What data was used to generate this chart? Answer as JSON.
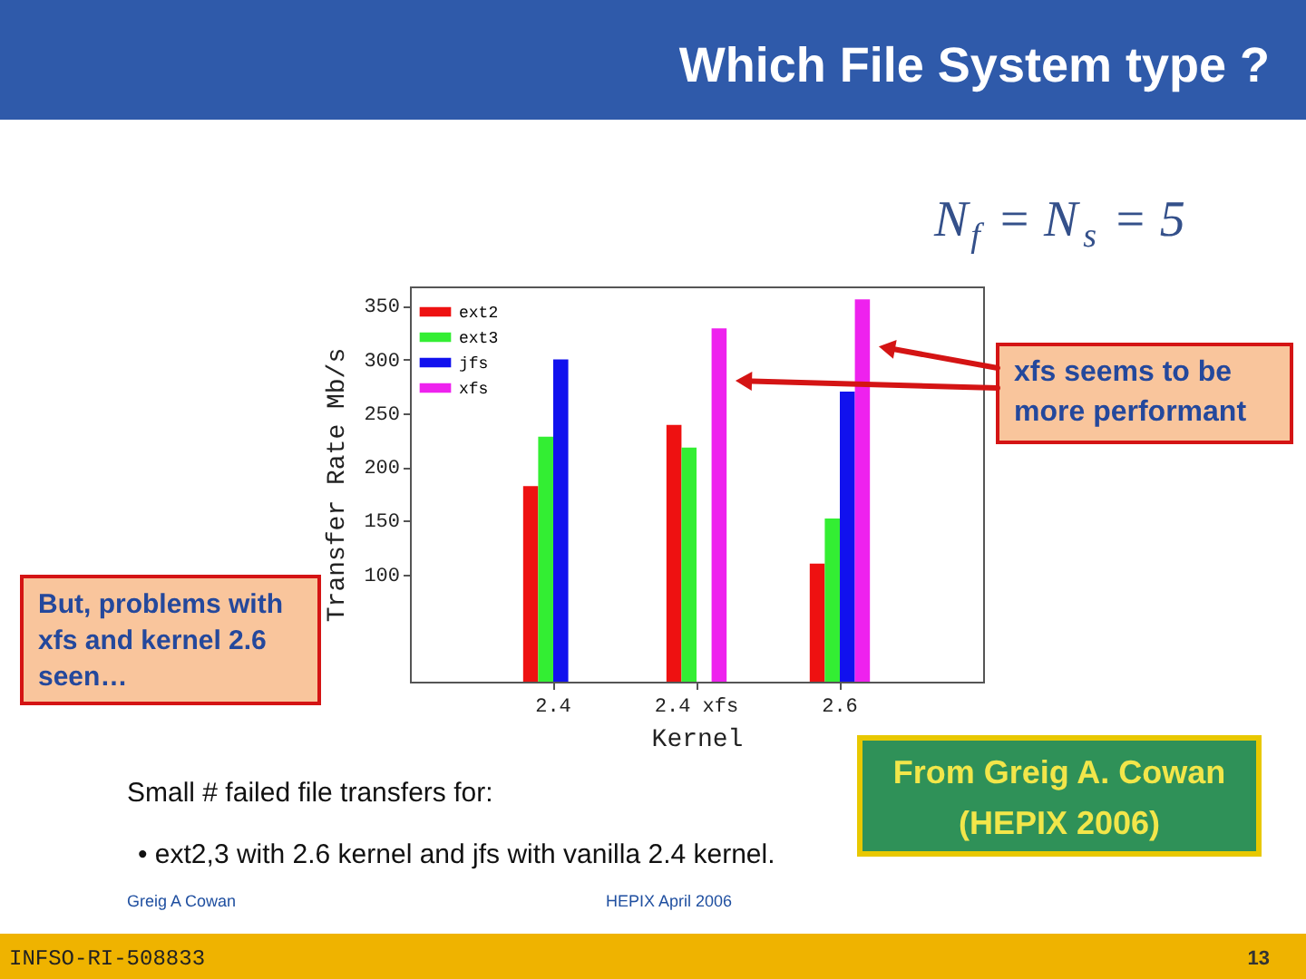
{
  "chart_data": {
    "type": "bar",
    "title": "Which File System type ?",
    "xlabel": "Kernel",
    "ylabel": "Transfer Rate Mb/s",
    "categories": [
      "2.4",
      "2.4 xfs",
      "2.6"
    ],
    "series": [
      {
        "name": "ext2",
        "color": "#ee1111",
        "values": [
          182,
          239,
          110
        ]
      },
      {
        "name": "ext3",
        "color": "#33ee33",
        "values": [
          228,
          218,
          152
        ]
      },
      {
        "name": "jfs",
        "color": "#1111ee",
        "values": [
          300,
          null,
          270
        ]
      },
      {
        "name": "xfs",
        "color": "#ee22ee",
        "values": [
          null,
          329,
          356
        ]
      }
    ],
    "ylim": [
      0,
      368
    ],
    "yticks": [
      100,
      150,
      200,
      250,
      300,
      350
    ],
    "grid": false,
    "legend": "top left",
    "annotations": [
      "N$_{f}$ = N$_{s}$ = 5",
      "xfs seems to be more performant",
      "But, problems with xfs and kernel 2.6 seen…",
      "From Greig A. Cowan (HEPIX 2006)",
      "Small # failed file transfers for:",
      "• ext2,3 with 2.6 kernel and jfs with vanilla 2.4 kernel.",
      "Greig A Cowan",
      "HEPIX April 2006",
      "INFSO-RI-508833",
      "13"
    ]
  }
}
